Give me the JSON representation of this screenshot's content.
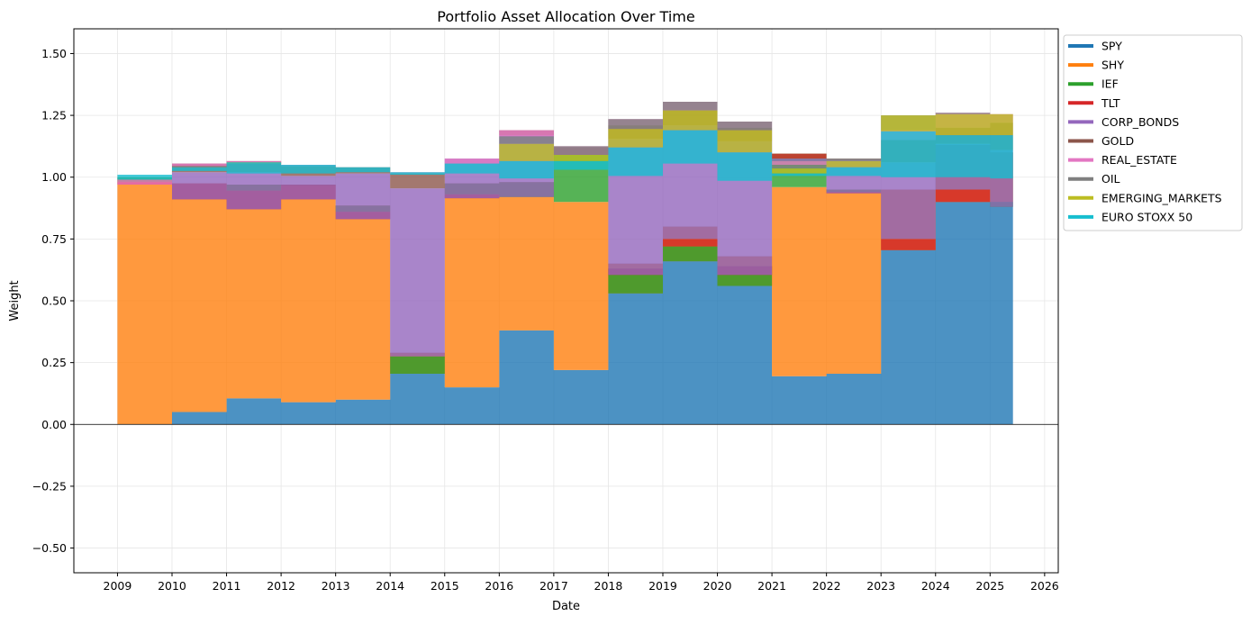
{
  "chart_data": {
    "type": "area",
    "title": "Portfolio Asset Allocation Over Time",
    "xlabel": "Date",
    "ylabel": "Weight",
    "xlim": [
      2008.2,
      2026.25
    ],
    "ylim": [
      -0.6,
      1.6
    ],
    "x_ticks": [
      "2009",
      "2010",
      "2011",
      "2012",
      "2013",
      "2014",
      "2015",
      "2016",
      "2017",
      "2018",
      "2019",
      "2020",
      "2021",
      "2022",
      "2023",
      "2024",
      "2025",
      "2026"
    ],
    "y_ticks": [
      "−0.50",
      "−0.25",
      "0.00",
      "0.25",
      "0.50",
      "0.75",
      "1.00",
      "1.25",
      "1.50"
    ],
    "grid": true,
    "legend_position": "upper-right-outside",
    "periods": [
      [
        2009.0,
        2010.0
      ],
      [
        2010.0,
        2011.0
      ],
      [
        2011.0,
        2012.0
      ],
      [
        2012.0,
        2013.0
      ],
      [
        2013.0,
        2014.0
      ],
      [
        2014.0,
        2015.0
      ],
      [
        2015.0,
        2016.0
      ],
      [
        2016.0,
        2017.0
      ],
      [
        2017.0,
        2018.0
      ],
      [
        2018.0,
        2019.0
      ],
      [
        2019.0,
        2020.0
      ],
      [
        2020.0,
        2021.0
      ],
      [
        2021.0,
        2022.0
      ],
      [
        2022.0,
        2023.0
      ],
      [
        2023.0,
        2024.0
      ],
      [
        2024.0,
        2025.0
      ],
      [
        2025.0,
        2025.42
      ]
    ],
    "series": [
      {
        "name": "SPY",
        "color": "#1f77b4",
        "values": [
          0.0,
          0.05,
          0.105,
          0.09,
          0.1,
          0.29,
          0.15,
          0.38,
          0.22,
          0.65,
          0.8,
          0.68,
          0.195,
          0.205,
          0.95,
          1.13,
          1.1
        ]
      },
      {
        "name": "SHY",
        "color": "#ff7f0e",
        "values": [
          1.0,
          0.925,
          0.865,
          0.875,
          0.785,
          -0.085,
          0.825,
          0.6,
          0.68,
          -0.12,
          -0.14,
          -0.12,
          0.765,
          0.745,
          -0.245,
          -0.23,
          -0.2
        ]
      },
      {
        "name": "IEF",
        "color": "#2ca02c",
        "values": [
          -0.02,
          0.0,
          -0.025,
          0.005,
          -0.025,
          0.07,
          -0.045,
          -0.06,
          0.22,
          0.1,
          0.06,
          0.08,
          0.135,
          -0.01,
          0.0,
          0.0,
          -0.02
        ]
      },
      {
        "name": "TLT",
        "color": "#d62728",
        "values": [
          -0.01,
          -0.065,
          -0.075,
          -0.06,
          -0.03,
          0.0,
          -0.015,
          0.0,
          -0.03,
          -0.025,
          0.03,
          -0.035,
          -0.02,
          -0.005,
          0.045,
          0.05,
          0.0
        ]
      },
      {
        "name": "CORP_BONDS",
        "color": "#9467bd",
        "values": [
          0.0,
          0.11,
          0.15,
          0.095,
          0.185,
          0.68,
          0.16,
          0.25,
          0.0,
          0.55,
          0.46,
          0.54,
          -0.01,
          0.135,
          0.31,
          0.185,
          0.23
        ]
      },
      {
        "name": "GOLD",
        "color": "#8c564b",
        "values": [
          0.0,
          0.035,
          0.045,
          0.04,
          0.025,
          0.06,
          0.0,
          0.02,
          0.0,
          0.055,
          0.06,
          0.055,
          0.0,
          0.005,
          0.09,
          0.065,
          0.11
        ]
      },
      {
        "name": "REAL_ESTATE",
        "color": "#e377c2",
        "values": [
          0.02,
          -0.01,
          -0.01,
          0.005,
          0.0,
          0.005,
          -0.02,
          -0.025,
          0.035,
          0.025,
          0.035,
          0.025,
          -0.015,
          0.0,
          0.04,
          0.06,
          0.035
        ]
      },
      {
        "name": "OIL",
        "color": "#7f7f7f",
        "values": [
          0.0,
          -0.005,
          0.0,
          0.0,
          0.0,
          0.0,
          0.0,
          -0.03,
          -0.035,
          -0.04,
          -0.035,
          -0.035,
          -0.015,
          -0.01,
          0.06,
          -0.005,
          0.0
        ]
      },
      {
        "name": "EMERGING_MARKETS",
        "color": "#bcbd22",
        "values": [
          0.0,
          0.0,
          0.005,
          0.0,
          0.0,
          0.0,
          0.0,
          -0.07,
          -0.025,
          -0.075,
          -0.08,
          -0.09,
          -0.02,
          -0.025,
          -0.065,
          -0.085,
          -0.085
        ]
      },
      {
        "name": "EURO STOXX 50",
        "color": "#17becf",
        "values": [
          0.02,
          -0.015,
          -0.045,
          -0.035,
          -0.02,
          -0.01,
          -0.04,
          -0.07,
          -0.035,
          -0.115,
          -0.135,
          -0.115,
          -0.01,
          -0.035,
          -0.185,
          -0.17,
          -0.175
        ]
      }
    ]
  }
}
